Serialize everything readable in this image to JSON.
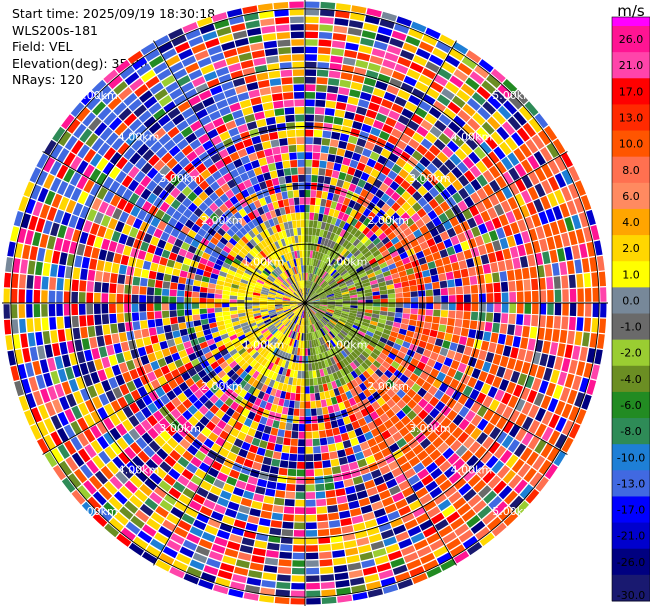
{
  "header": {
    "start_time": "Start time: 2025/09/19 18:30:18",
    "instrument": "WLS200s-181",
    "field": "Field: VEL",
    "elevation": "Elevation(deg): 35.00",
    "nrays": "NRays: 120"
  },
  "chart_data": {
    "type": "heatmap",
    "projection": "polar-ppi",
    "field": "VEL",
    "units": "m/s",
    "n_rays": 120,
    "elevation_deg": 35.0,
    "range_rings_km": [
      1.0,
      2.0,
      3.0,
      4.0,
      5.0
    ],
    "range_ring_labels": [
      "1.00km",
      "2.00km",
      "3.00km",
      "4.00km",
      "5.00km"
    ],
    "max_range_km": 5.15,
    "n_range_gates": 40,
    "value_range": [
      -30.0,
      30.0
    ],
    "pattern": {
      "inner_region": "values mostly 0 to 4 m/s (yellow) on the west side and -1 to -4 m/s (olive/green) on the east side within about 1.5 km",
      "outer_region": "noisy velocities spanning the full -30 to 30 m/s scale beyond about 1.5 km, with bands of 8 to 13 m/s toward the east and south-east and -10 to -13 m/s toward the north-west"
    },
    "colorbar": {
      "title": "m/s",
      "ticks": [
        "26.0",
        "21.0",
        "17.0",
        "13.0",
        "10.0",
        "8.0",
        "6.0",
        "4.0",
        "2.0",
        "1.0",
        "0.0",
        "-1.0",
        "-2.0",
        "-4.0",
        "-6.0",
        "-8.0",
        "-10.0",
        "-13.0",
        "-17.0",
        "-21.0",
        "-26.0",
        "-30.0"
      ],
      "colors": [
        "#ff1493",
        "#ff44aa",
        "#ff0000",
        "#ff2a00",
        "#ff5500",
        "#ff7050",
        "#ff8a60",
        "#ffa500",
        "#ffd700",
        "#ffff00",
        "#778899",
        "#6a6a6a",
        "#9acd32",
        "#6b8e23",
        "#228b22",
        "#2e8b57",
        "#1e7fd6",
        "#4169e1",
        "#0000ff",
        "#0000cd",
        "#000080",
        "#191970"
      ],
      "top_color": "#ff00ff"
    }
  }
}
